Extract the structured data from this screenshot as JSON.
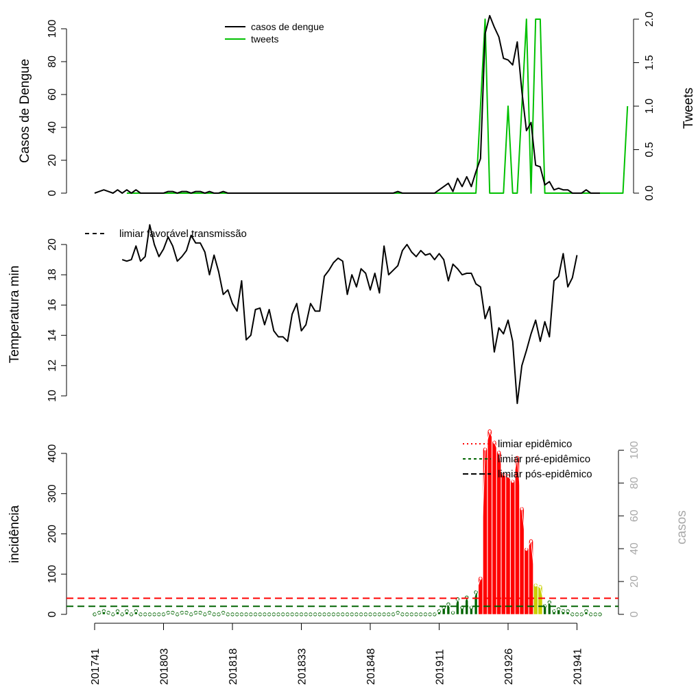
{
  "chart_data": [
    {
      "type": "line",
      "panel": "cases-tweets",
      "ylabel": "Casos de Dengue",
      "y2label": "Tweets",
      "ylim": [
        0,
        100
      ],
      "y2lim": [
        0,
        2
      ],
      "yticks": [
        "0",
        "20",
        "40",
        "60",
        "80",
        "100"
      ],
      "y2ticks": [
        "0.0",
        "0.5",
        "1.0",
        "1.5",
        "2.0"
      ],
      "legend": {
        "position": "top-center",
        "entries": [
          "casos de dengue",
          "tweets"
        ]
      },
      "colors": {
        "cases": "#000000",
        "tweets": "#00c000"
      },
      "series": [
        {
          "name": "casos de dengue",
          "axis": "left",
          "color": "#000000",
          "values": [
            0,
            1,
            2,
            1,
            0,
            2,
            0,
            2,
            0,
            2,
            0,
            0,
            0,
            0,
            0,
            0,
            1,
            1,
            0,
            1,
            1,
            0,
            1,
            1,
            0,
            1,
            0,
            0,
            1,
            0,
            0,
            0,
            0,
            0,
            0,
            0,
            0,
            0,
            0,
            0,
            0,
            0,
            0,
            0,
            0,
            0,
            0,
            0,
            0,
            0,
            0,
            0,
            0,
            0,
            0,
            0,
            0,
            0,
            0,
            0,
            0,
            0,
            0,
            0,
            0,
            0,
            1,
            0,
            0,
            0,
            0,
            0,
            0,
            0,
            0,
            2,
            4,
            6,
            1,
            9,
            4,
            10,
            4,
            13,
            21,
            97,
            108,
            101,
            95,
            82,
            81,
            78,
            92,
            62,
            38,
            43,
            17,
            16,
            5,
            7,
            2,
            3,
            2,
            2,
            0,
            0,
            0,
            2,
            0,
            0,
            0
          ]
        },
        {
          "name": "tweets",
          "axis": "right",
          "color": "#00c000",
          "values": [
            null,
            null,
            null,
            null,
            null,
            null,
            null,
            0,
            0,
            0,
            0,
            0,
            0,
            0,
            0,
            0,
            0,
            0,
            0,
            0,
            0,
            0,
            0,
            0,
            0,
            0,
            0,
            0,
            0,
            0,
            0,
            0,
            0,
            0,
            0,
            0,
            0,
            0,
            0,
            0,
            0,
            0,
            0,
            0,
            0,
            0,
            0,
            0,
            0,
            0,
            0,
            0,
            0,
            0,
            0,
            0,
            0,
            0,
            0,
            0,
            0,
            0,
            0,
            0,
            0,
            0,
            0,
            0,
            0,
            0,
            0,
            0,
            0,
            0,
            0,
            0,
            0,
            0,
            0,
            0,
            0,
            0,
            0,
            0,
            1,
            2,
            0,
            0,
            0,
            0,
            1,
            0,
            0,
            1,
            2,
            0,
            2,
            2,
            0,
            0,
            0,
            0,
            0,
            0,
            0,
            0,
            0,
            0,
            0,
            0,
            0,
            0,
            0,
            0,
            0,
            0,
            1
          ]
        }
      ]
    },
    {
      "type": "line",
      "panel": "temperature",
      "ylabel": "Temperatura min",
      "ylim": [
        9.5,
        21.2
      ],
      "yticks": [
        "10",
        "12",
        "14",
        "16",
        "18",
        "20"
      ],
      "legend": {
        "position": "top-left",
        "entries": [
          "limiar favorável transmissão"
        ]
      },
      "series": [
        {
          "name": "Temperatura min",
          "color": "#000000",
          "values": [
            null,
            null,
            null,
            null,
            null,
            null,
            19.0,
            18.9,
            19.0,
            19.9,
            18.9,
            19.2,
            21.3,
            20.0,
            19.2,
            19.7,
            20.5,
            19.9,
            18.9,
            19.2,
            19.6,
            20.6,
            20.1,
            20.1,
            19.5,
            18.0,
            19.3,
            18.2,
            16.7,
            17.0,
            16.1,
            15.6,
            17.6,
            13.7,
            14.0,
            15.7,
            15.8,
            14.7,
            15.7,
            14.3,
            13.9,
            13.9,
            13.6,
            15.4,
            16.1,
            14.3,
            14.7,
            16.1,
            15.6,
            15.6,
            17.9,
            18.3,
            18.8,
            19.1,
            18.9,
            16.7,
            18.0,
            17.2,
            18.4,
            18.1,
            17.0,
            18.1,
            16.8,
            19.9,
            18.0,
            18.3,
            18.6,
            19.6,
            20.0,
            19.5,
            19.2,
            19.6,
            19.3,
            19.4,
            19.0,
            19.4,
            19.0,
            17.6,
            18.7,
            18.4,
            18.0,
            18.1,
            18.1,
            17.4,
            17.2,
            15.1,
            15.9,
            12.9,
            14.5,
            14.1,
            15.0,
            13.6,
            9.5,
            12.0,
            13.0,
            14.1,
            15.0,
            13.6,
            14.9,
            13.9,
            17.6,
            17.9,
            19.4,
            17.2,
            17.8,
            19.3
          ]
        }
      ]
    },
    {
      "type": "bar",
      "panel": "incidence",
      "ylabel": "incidência",
      "y2label": "casos",
      "ylim": [
        0,
        450
      ],
      "y2lim": [
        0,
        105
      ],
      "yticks": [
        "0",
        "100",
        "200",
        "300",
        "400"
      ],
      "y2ticks": [
        "0",
        "20",
        "40",
        "60",
        "80",
        "100"
      ],
      "thresholds": [
        {
          "name": "limiar epidêmico",
          "value": 40,
          "color": "#ff0000"
        },
        {
          "name": "limiar pré-epidêmico",
          "value": 20,
          "color": "#006400"
        },
        {
          "name": "limiar pós-epidêmico",
          "value": 0,
          "color": "#000000"
        }
      ],
      "legend": {
        "position": "top-right",
        "entries": [
          "limiar epidêmico",
          "limiar pré-epidêmico",
          "limiar pós-epidêmico"
        ]
      },
      "alert_colors": {
        "green": "#006400",
        "yellow": "#c8d000",
        "red": "#ff0000"
      },
      "series": [
        {
          "name": "incidência",
          "axis": "left",
          "values": [
            0,
            4,
            8,
            4,
            0,
            8,
            0,
            8,
            0,
            8,
            0,
            0,
            0,
            0,
            0,
            0,
            4,
            4,
            0,
            4,
            4,
            0,
            4,
            4,
            0,
            4,
            0,
            0,
            4,
            0,
            0,
            0,
            0,
            0,
            0,
            0,
            0,
            0,
            0,
            0,
            0,
            0,
            0,
            0,
            0,
            0,
            0,
            0,
            0,
            0,
            0,
            0,
            0,
            0,
            0,
            0,
            0,
            0,
            0,
            0,
            0,
            0,
            0,
            0,
            0,
            0,
            4,
            0,
            0,
            0,
            0,
            0,
            0,
            0,
            0,
            8,
            17,
            25,
            4,
            38,
            17,
            42,
            17,
            55,
            89,
            410,
            455,
            427,
            402,
            347,
            343,
            330,
            389,
            262,
            161,
            182,
            72,
            68,
            21,
            30,
            8,
            13,
            8,
            8,
            0,
            0,
            0,
            8,
            0,
            0,
            0
          ],
          "alert": [
            "g",
            "g",
            "g",
            "g",
            "g",
            "g",
            "g",
            "g",
            "g",
            "g",
            "g",
            "g",
            "g",
            "g",
            "g",
            "g",
            "g",
            "g",
            "g",
            "g",
            "g",
            "g",
            "g",
            "g",
            "g",
            "g",
            "g",
            "g",
            "g",
            "g",
            "g",
            "g",
            "g",
            "g",
            "g",
            "g",
            "g",
            "g",
            "g",
            "g",
            "g",
            "g",
            "g",
            "g",
            "g",
            "g",
            "g",
            "g",
            "g",
            "g",
            "g",
            "g",
            "g",
            "g",
            "g",
            "g",
            "g",
            "g",
            "g",
            "g",
            "g",
            "g",
            "g",
            "g",
            "g",
            "g",
            "g",
            "g",
            "g",
            "g",
            "g",
            "g",
            "g",
            "g",
            "g",
            "g",
            "g",
            "g",
            "g",
            "g",
            "g",
            "g",
            "g",
            "g",
            "r",
            "r",
            "r",
            "r",
            "r",
            "r",
            "r",
            "r",
            "r",
            "r",
            "r",
            "r",
            "y",
            "y",
            "g",
            "g",
            "g",
            "g",
            "g",
            "g",
            "g",
            "g",
            "g",
            "g",
            "g",
            "g",
            "g"
          ]
        }
      ]
    }
  ],
  "x_axis": {
    "labels": [
      "201741",
      "201803",
      "201818",
      "201833",
      "201848",
      "201911",
      "201926",
      "201941"
    ],
    "label_index": [
      0,
      15,
      30,
      45,
      60,
      75,
      90,
      105
    ],
    "n_weeks": 111
  }
}
